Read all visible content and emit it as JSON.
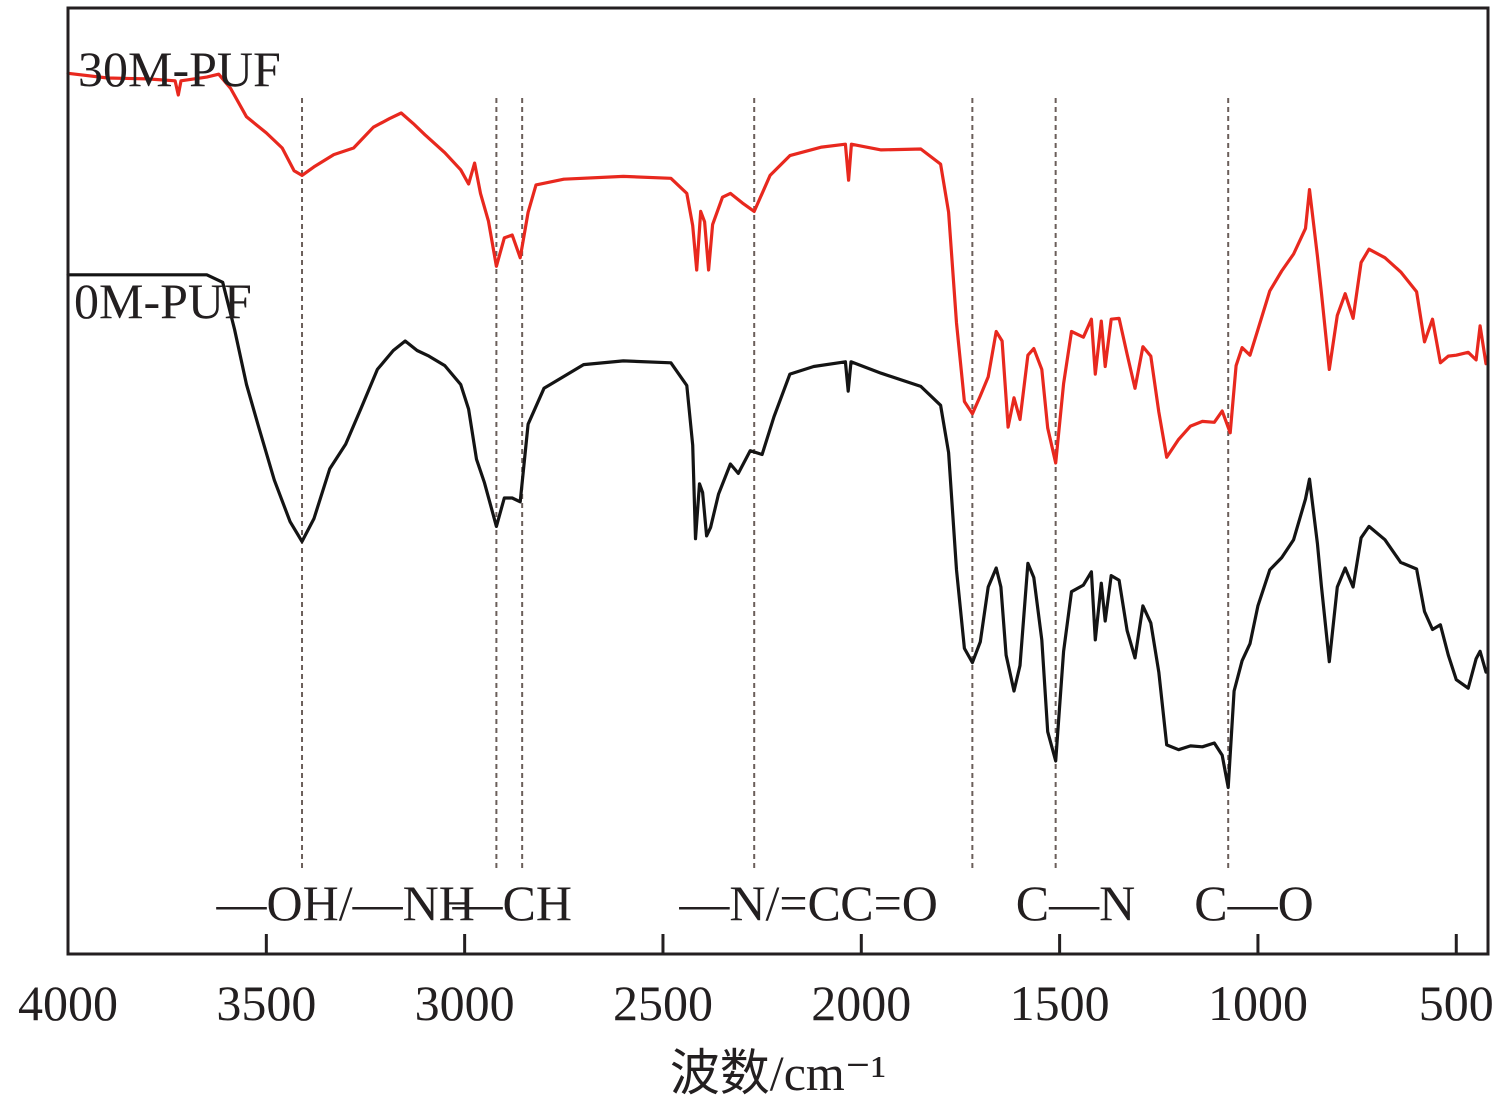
{
  "chart_data": {
    "type": "line",
    "xlabel": "波数/cm⁻¹",
    "x_reversed": true,
    "xlim": [
      4000,
      420
    ],
    "ylim": [
      0,
      100
    ],
    "xticks": [
      4000,
      3500,
      3000,
      2500,
      2000,
      1500,
      1000,
      500
    ],
    "xtick_labels": [
      "4000",
      "3500",
      "3000",
      "2500",
      "2000",
      "1500",
      "1000",
      "500"
    ],
    "y_ticks_shown": false,
    "grid": false,
    "legend": "none",
    "series": [
      {
        "name": "30M-PUF",
        "color": "#e8281e",
        "points": [
          [
            4000,
            93.1
          ],
          [
            3900,
            92.6
          ],
          [
            3800,
            92.5
          ],
          [
            3730,
            92.3
          ],
          [
            3722,
            90.8
          ],
          [
            3715,
            92.3
          ],
          [
            3650,
            92.7
          ],
          [
            3620,
            93.0
          ],
          [
            3590,
            91.5
          ],
          [
            3550,
            88.5
          ],
          [
            3500,
            86.8
          ],
          [
            3460,
            85.2
          ],
          [
            3430,
            82.8
          ],
          [
            3410,
            82.3
          ],
          [
            3380,
            83.2
          ],
          [
            3330,
            84.5
          ],
          [
            3280,
            85.2
          ],
          [
            3230,
            87.4
          ],
          [
            3190,
            88.3
          ],
          [
            3160,
            88.9
          ],
          [
            3130,
            87.8
          ],
          [
            3100,
            86.6
          ],
          [
            3050,
            84.7
          ],
          [
            3010,
            82.9
          ],
          [
            2990,
            81.4
          ],
          [
            2975,
            83.6
          ],
          [
            2960,
            80.4
          ],
          [
            2940,
            77.5
          ],
          [
            2920,
            72.7
          ],
          [
            2900,
            75.7
          ],
          [
            2880,
            76.0
          ],
          [
            2860,
            73.6
          ],
          [
            2840,
            78.4
          ],
          [
            2820,
            81.3
          ],
          [
            2750,
            81.9
          ],
          [
            2600,
            82.2
          ],
          [
            2480,
            82.0
          ],
          [
            2440,
            80.4
          ],
          [
            2425,
            77.0
          ],
          [
            2415,
            72.3
          ],
          [
            2405,
            78.5
          ],
          [
            2395,
            77.4
          ],
          [
            2385,
            72.3
          ],
          [
            2375,
            77.1
          ],
          [
            2350,
            80.0
          ],
          [
            2330,
            80.4
          ],
          [
            2300,
            79.4
          ],
          [
            2270,
            78.5
          ],
          [
            2230,
            82.3
          ],
          [
            2180,
            84.4
          ],
          [
            2100,
            85.3
          ],
          [
            2040,
            85.6
          ],
          [
            2032,
            81.8
          ],
          [
            2025,
            85.6
          ],
          [
            1950,
            85.0
          ],
          [
            1850,
            85.1
          ],
          [
            1800,
            83.5
          ],
          [
            1780,
            78.4
          ],
          [
            1760,
            66.7
          ],
          [
            1740,
            58.4
          ],
          [
            1720,
            57.1
          ],
          [
            1700,
            59.0
          ],
          [
            1680,
            61.0
          ],
          [
            1660,
            65.8
          ],
          [
            1645,
            64.8
          ],
          [
            1630,
            55.7
          ],
          [
            1615,
            58.8
          ],
          [
            1600,
            56.5
          ],
          [
            1580,
            63.3
          ],
          [
            1565,
            64.0
          ],
          [
            1545,
            61.8
          ],
          [
            1530,
            55.6
          ],
          [
            1510,
            51.9
          ],
          [
            1490,
            60.3
          ],
          [
            1470,
            65.8
          ],
          [
            1440,
            65.2
          ],
          [
            1420,
            67.1
          ],
          [
            1410,
            61.3
          ],
          [
            1395,
            66.9
          ],
          [
            1385,
            62.1
          ],
          [
            1370,
            67.1
          ],
          [
            1350,
            67.2
          ],
          [
            1330,
            63.4
          ],
          [
            1310,
            59.8
          ],
          [
            1290,
            64.2
          ],
          [
            1270,
            63.2
          ],
          [
            1250,
            57.3
          ],
          [
            1230,
            52.5
          ],
          [
            1200,
            54.4
          ],
          [
            1170,
            55.8
          ],
          [
            1140,
            56.3
          ],
          [
            1110,
            56.2
          ],
          [
            1090,
            57.4
          ],
          [
            1070,
            55.1
          ],
          [
            1055,
            62.2
          ],
          [
            1040,
            64.1
          ],
          [
            1020,
            63.3
          ],
          [
            1000,
            66.0
          ],
          [
            970,
            70.1
          ],
          [
            940,
            72.2
          ],
          [
            910,
            74.0
          ],
          [
            880,
            76.7
          ],
          [
            870,
            80.8
          ],
          [
            850,
            73.8
          ],
          [
            840,
            69.9
          ],
          [
            820,
            61.8
          ],
          [
            800,
            67.5
          ],
          [
            780,
            69.8
          ],
          [
            760,
            67.2
          ],
          [
            740,
            73.1
          ],
          [
            720,
            74.5
          ],
          [
            680,
            73.6
          ],
          [
            640,
            72.1
          ],
          [
            600,
            70.0
          ],
          [
            580,
            64.7
          ],
          [
            560,
            67.1
          ],
          [
            540,
            62.5
          ],
          [
            520,
            63.2
          ],
          [
            500,
            63.3
          ],
          [
            470,
            63.6
          ],
          [
            450,
            62.8
          ],
          [
            440,
            66.4
          ],
          [
            425,
            62.4
          ]
        ]
      },
      {
        "name": "0M-PUF",
        "color": "#141414",
        "points": [
          [
            4000,
            71.8
          ],
          [
            3900,
            71.8
          ],
          [
            3800,
            71.8
          ],
          [
            3730,
            71.8
          ],
          [
            3650,
            71.8
          ],
          [
            3610,
            71.0
          ],
          [
            3580,
            66.0
          ],
          [
            3550,
            60.2
          ],
          [
            3520,
            55.8
          ],
          [
            3480,
            50.1
          ],
          [
            3440,
            45.7
          ],
          [
            3410,
            43.6
          ],
          [
            3380,
            46.0
          ],
          [
            3340,
            51.3
          ],
          [
            3300,
            53.9
          ],
          [
            3260,
            57.8
          ],
          [
            3220,
            61.8
          ],
          [
            3180,
            63.8
          ],
          [
            3150,
            64.8
          ],
          [
            3120,
            63.8
          ],
          [
            3090,
            63.2
          ],
          [
            3050,
            62.2
          ],
          [
            3010,
            60.2
          ],
          [
            2990,
            57.6
          ],
          [
            2970,
            52.3
          ],
          [
            2950,
            49.8
          ],
          [
            2920,
            45.2
          ],
          [
            2900,
            48.2
          ],
          [
            2880,
            48.2
          ],
          [
            2860,
            47.8
          ],
          [
            2840,
            56.0
          ],
          [
            2800,
            59.8
          ],
          [
            2700,
            62.3
          ],
          [
            2600,
            62.7
          ],
          [
            2480,
            62.5
          ],
          [
            2440,
            60.1
          ],
          [
            2425,
            53.8
          ],
          [
            2418,
            43.9
          ],
          [
            2408,
            49.7
          ],
          [
            2400,
            48.8
          ],
          [
            2390,
            44.2
          ],
          [
            2380,
            45.1
          ],
          [
            2360,
            48.6
          ],
          [
            2330,
            51.8
          ],
          [
            2310,
            50.8
          ],
          [
            2280,
            53.2
          ],
          [
            2250,
            52.8
          ],
          [
            2220,
            56.8
          ],
          [
            2180,
            61.3
          ],
          [
            2120,
            62.1
          ],
          [
            2040,
            62.6
          ],
          [
            2033,
            59.5
          ],
          [
            2026,
            62.6
          ],
          [
            1950,
            61.4
          ],
          [
            1850,
            60.0
          ],
          [
            1800,
            58.0
          ],
          [
            1780,
            53.0
          ],
          [
            1760,
            40.6
          ],
          [
            1740,
            32.3
          ],
          [
            1720,
            30.8
          ],
          [
            1700,
            33.0
          ],
          [
            1680,
            38.8
          ],
          [
            1660,
            40.8
          ],
          [
            1648,
            38.8
          ],
          [
            1635,
            31.6
          ],
          [
            1615,
            27.8
          ],
          [
            1600,
            30.5
          ],
          [
            1580,
            41.3
          ],
          [
            1565,
            39.8
          ],
          [
            1545,
            33.2
          ],
          [
            1530,
            23.5
          ],
          [
            1510,
            20.4
          ],
          [
            1490,
            32.0
          ],
          [
            1470,
            38.3
          ],
          [
            1440,
            39.0
          ],
          [
            1420,
            40.4
          ],
          [
            1410,
            33.2
          ],
          [
            1395,
            39.2
          ],
          [
            1385,
            35.2
          ],
          [
            1370,
            40.0
          ],
          [
            1350,
            39.5
          ],
          [
            1330,
            34.2
          ],
          [
            1310,
            31.3
          ],
          [
            1290,
            36.8
          ],
          [
            1270,
            35.0
          ],
          [
            1250,
            29.8
          ],
          [
            1230,
            22.1
          ],
          [
            1200,
            21.6
          ],
          [
            1170,
            22.0
          ],
          [
            1140,
            21.9
          ],
          [
            1110,
            22.3
          ],
          [
            1090,
            21.0
          ],
          [
            1075,
            17.6
          ],
          [
            1060,
            27.8
          ],
          [
            1040,
            31.0
          ],
          [
            1020,
            32.8
          ],
          [
            1000,
            36.8
          ],
          [
            970,
            40.6
          ],
          [
            940,
            41.9
          ],
          [
            910,
            43.8
          ],
          [
            880,
            48.1
          ],
          [
            870,
            50.2
          ],
          [
            850,
            43.4
          ],
          [
            840,
            38.9
          ],
          [
            820,
            30.9
          ],
          [
            800,
            38.8
          ],
          [
            780,
            40.8
          ],
          [
            760,
            38.8
          ],
          [
            740,
            44.0
          ],
          [
            720,
            45.2
          ],
          [
            680,
            43.8
          ],
          [
            640,
            41.4
          ],
          [
            600,
            40.7
          ],
          [
            580,
            36.2
          ],
          [
            560,
            34.3
          ],
          [
            540,
            34.8
          ],
          [
            520,
            31.6
          ],
          [
            500,
            29.0
          ],
          [
            470,
            28.1
          ],
          [
            450,
            31.2
          ],
          [
            440,
            32.0
          ],
          [
            425,
            29.8
          ]
        ]
      }
    ],
    "reference_lines": [
      3410,
      2920,
      2855,
      2270,
      1720,
      1510,
      1075
    ],
    "band_labels": [
      "—OH/—NH",
      "—CH",
      "—N/=C",
      "C=O",
      "C—N",
      "C—O"
    ],
    "band_label_x": [
      3300,
      2880,
      2255,
      1930,
      1460,
      1010
    ]
  }
}
